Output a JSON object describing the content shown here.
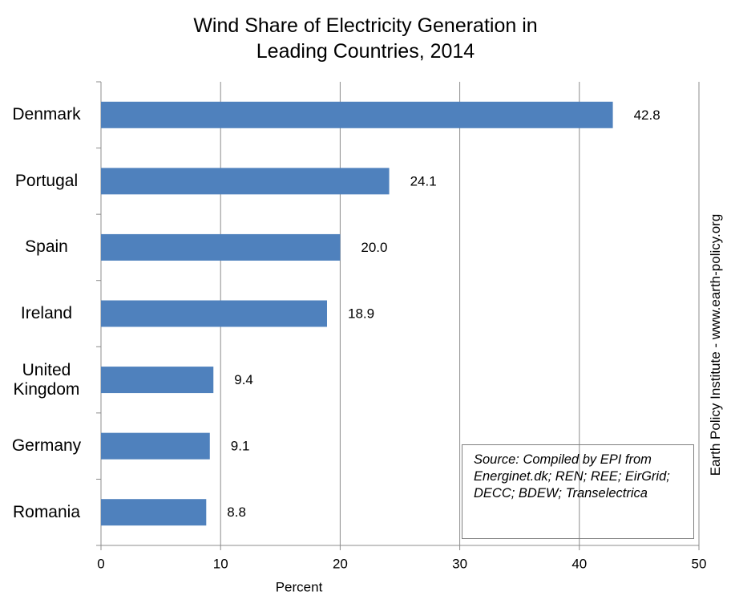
{
  "chart_data": {
    "type": "bar",
    "orientation": "horizontal",
    "title": [
      "Wind Share of Electricity Generation in",
      "Leading Countries, 2014"
    ],
    "categories": [
      "Denmark",
      "Portugal",
      "Spain",
      "Ireland",
      "United Kingdom",
      "Germany",
      "Romania"
    ],
    "values": [
      42.8,
      24.1,
      20.0,
      18.9,
      9.4,
      9.1,
      8.8
    ],
    "value_labels": [
      "42.8",
      "24.1",
      "20.0",
      "18.9",
      "9.4",
      "9.1",
      "8.8"
    ],
    "color": "#4f81bd",
    "xlim": [
      0,
      50
    ],
    "xticks": [
      0,
      10,
      20,
      30,
      40,
      50
    ],
    "grid": true,
    "xlabel": "Percent",
    "source": "Source: Compiled by EPI from Energinet.dk; REN; REE; EirGrid; DECC; BDEW; Transelectrica",
    "side_note": "Earth Policy Institute - www.earth-policy.org"
  }
}
